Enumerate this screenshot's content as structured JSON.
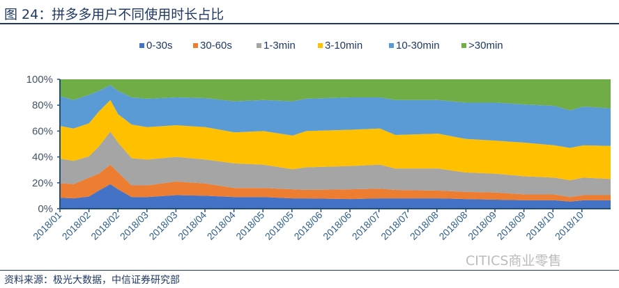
{
  "title": "图 24：拼多多用户不同使用时长占比",
  "source": "资料来源：极光大数据，中信证券研究部",
  "watermark": "CITICS商业零售",
  "chart_data": {
    "type": "area",
    "stacked": true,
    "normalized": true,
    "legend_position": "top",
    "grid": false,
    "ylim": [
      0,
      100
    ],
    "y_ticks": [
      "0%",
      "20%",
      "40%",
      "60%",
      "80%",
      "100%"
    ],
    "x_ticks": [
      "2018/01",
      "2018/02",
      "2018/02",
      "2018/03",
      "2018/03",
      "2018/04",
      "2018/04",
      "2018/05",
      "2018/05",
      "2018/06",
      "2018/06",
      "2018/07",
      "2018/07",
      "2018/08",
      "2018/08",
      "2018/09",
      "2018/09",
      "2018/10",
      "2018/10"
    ],
    "x": [
      "2018-01-20",
      "2018-01-27",
      "2018-02-04",
      "2018-02-09",
      "2018-02-15",
      "2018-02-19",
      "2018-02-26",
      "2018-03-06",
      "2018-03-21",
      "2018-04-05",
      "2018-04-20",
      "2018-05-05",
      "2018-05-20",
      "2018-05-27",
      "2018-06-19",
      "2018-07-04",
      "2018-07-12",
      "2018-08-03",
      "2018-08-17",
      "2018-09-02",
      "2018-09-17",
      "2018-10-02",
      "2018-10-10",
      "2018-10-17",
      "2018-10-31"
    ],
    "series": [
      {
        "name": "0-30s",
        "color": "#4472C4",
        "values": [
          8.5,
          8,
          9.4,
          14,
          19,
          15,
          9,
          9,
          10.5,
          10,
          9,
          9,
          8,
          8,
          7.5,
          8,
          8,
          8,
          7.5,
          7,
          6.5,
          6.5,
          5.5,
          6.5,
          6.5
        ]
      },
      {
        "name": "30-60s",
        "color": "#ED7D31",
        "values": [
          11.3,
          11,
          14.6,
          13,
          15,
          13,
          9,
          9,
          10.5,
          9.5,
          7,
          7,
          7,
          6.5,
          7.5,
          7.5,
          6.5,
          6,
          5.5,
          5.5,
          4.5,
          4.5,
          3.5,
          4,
          4
        ]
      },
      {
        "name": "1-3min",
        "color": "#A5A5A5",
        "values": [
          18.9,
          18,
          16.5,
          21,
          25.5,
          23,
          21,
          20,
          19,
          18.5,
          19,
          18,
          15.5,
          17.5,
          18,
          18.5,
          16.5,
          17,
          15,
          14.5,
          14,
          13,
          13,
          13.5,
          12.5
        ]
      },
      {
        "name": "3-10min",
        "color": "#FFC000",
        "values": [
          25.3,
          25,
          25.5,
          27,
          24.5,
          22,
          26,
          25,
          24.5,
          25,
          24,
          26,
          26,
          28,
          28,
          28,
          26,
          27,
          26,
          25.5,
          26,
          25,
          25,
          25,
          25.5
        ]
      },
      {
        "name": "10-30min",
        "color": "#5B9BD5",
        "values": [
          23,
          22,
          22,
          16,
          11.5,
          18,
          21,
          22,
          21.5,
          22.5,
          24,
          24,
          26.5,
          25,
          25,
          24,
          27,
          26,
          28,
          29.5,
          29.5,
          30.5,
          29,
          30,
          29
        ]
      },
      {
        "name": ">30min",
        "color": "#70AD47",
        "values": [
          13,
          16,
          12,
          9,
          4.5,
          9,
          14,
          15,
          14,
          14.5,
          17,
          16,
          17,
          15,
          14,
          14,
          16,
          16,
          18,
          18,
          19.5,
          20.5,
          24,
          21,
          22.5
        ]
      }
    ]
  }
}
